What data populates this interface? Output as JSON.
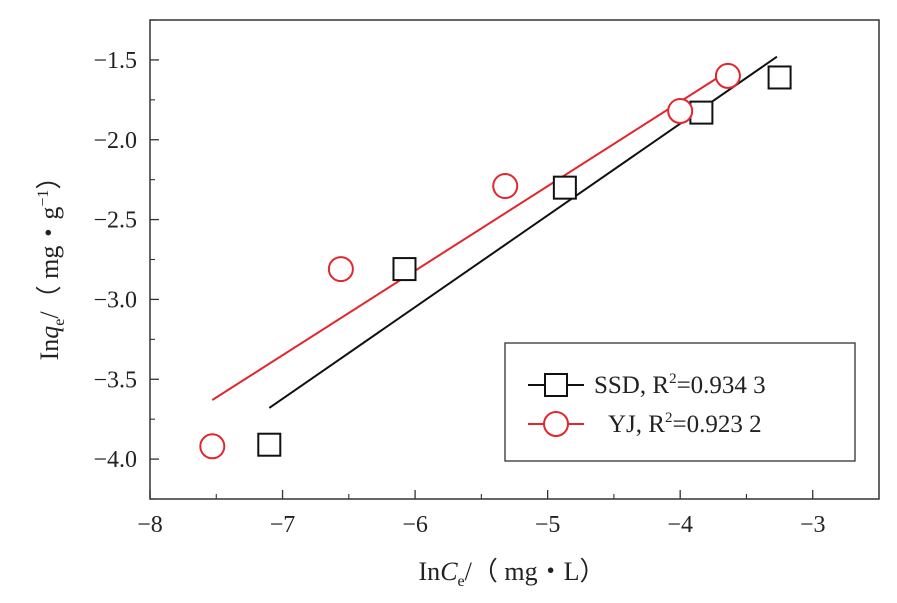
{
  "chart_data": {
    "type": "scatter",
    "xlabel": {
      "prefix": "In",
      "var": "C",
      "sub": "e",
      "unit": "/（ mg・L）"
    },
    "ylabel": {
      "prefix": "In",
      "var": "q",
      "sub": "e",
      "unit": "/（ mg・g",
      "sup": "−1",
      "close": "）"
    },
    "xlim": [
      -8,
      -2.5
    ],
    "ylim": [
      -4.25,
      -1.25
    ],
    "xticks": [
      -8,
      -7,
      -6,
      -5,
      -4,
      -3
    ],
    "xtick_labels": [
      "−8",
      "−7",
      "−6",
      "−5",
      "−4",
      "−3"
    ],
    "yticks": [
      -4.0,
      -3.5,
      -3.0,
      -2.5,
      -2.0,
      -1.5
    ],
    "ytick_labels": [
      "−4.0",
      "−3.5",
      "−3.0",
      "−2.5",
      "−2.0",
      "−1.5"
    ],
    "series": [
      {
        "name": "SSD",
        "r2_label": "R",
        "r2_sup": "2",
        "r2_value": "=0.934 3",
        "marker": "square",
        "color": "#111111",
        "points": [
          [
            -7.1,
            -3.91
          ],
          [
            -6.08,
            -2.81
          ],
          [
            -4.87,
            -2.3
          ],
          [
            -3.84,
            -1.83
          ],
          [
            -3.25,
            -1.61
          ]
        ],
        "fit": [
          [
            -7.1,
            -3.68
          ],
          [
            -3.27,
            -1.48
          ]
        ]
      },
      {
        "name": "YJ",
        "r2_label": "R",
        "r2_sup": "2",
        "r2_value": "=0.923 2",
        "marker": "circle",
        "color": "#e3262d",
        "points": [
          [
            -7.53,
            -3.92
          ],
          [
            -6.56,
            -2.81
          ],
          [
            -5.32,
            -2.29
          ],
          [
            -4.0,
            -1.82
          ],
          [
            -3.64,
            -1.6
          ]
        ],
        "fit": [
          [
            -7.53,
            -3.63
          ],
          [
            -3.62,
            -1.56
          ]
        ]
      }
    ],
    "legend_position": "bottom-right",
    "grid": false
  }
}
